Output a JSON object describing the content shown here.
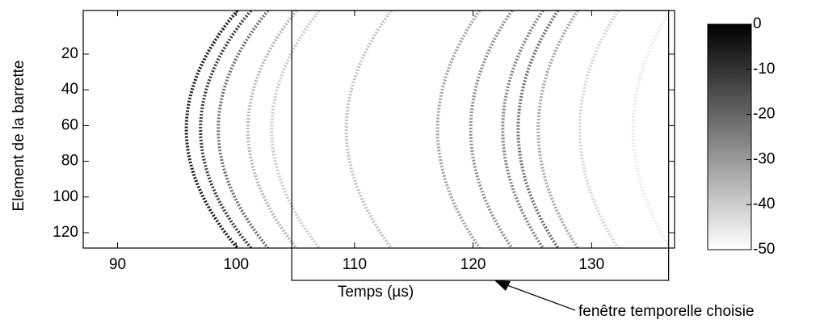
{
  "chart_data": {
    "type": "heatmap",
    "xlabel": "Temps (µs)",
    "ylabel": "Element de la barrette",
    "xlim": [
      87.1,
      137.0
    ],
    "xticks": [
      90,
      100,
      110,
      120,
      130
    ],
    "ylim": [
      128.6,
      -4.4
    ],
    "yticks": [
      20,
      40,
      60,
      80,
      100,
      120
    ],
    "clim": [
      -50,
      0
    ],
    "cticks": [
      0,
      -10,
      -20,
      -30,
      -40,
      -50
    ],
    "arcs": [
      {
        "x": 95.8,
        "value": -5
      },
      {
        "x": 97.0,
        "value": -12
      },
      {
        "x": 98.5,
        "value": -22
      },
      {
        "x": 101.0,
        "value": -36
      },
      {
        "x": 103.0,
        "value": -40
      },
      {
        "x": 109.3,
        "value": -38
      },
      {
        "x": 117.0,
        "value": -32
      },
      {
        "x": 119.8,
        "value": -28
      },
      {
        "x": 122.5,
        "value": -26
      },
      {
        "x": 123.8,
        "value": -22
      },
      {
        "x": 125.5,
        "value": -33
      },
      {
        "x": 129.0,
        "value": -42
      },
      {
        "x": 133.5,
        "value": -46
      }
    ],
    "window": [
      104.7,
      136.5
    ],
    "annotation": "fenêtre temporelle choisie"
  }
}
